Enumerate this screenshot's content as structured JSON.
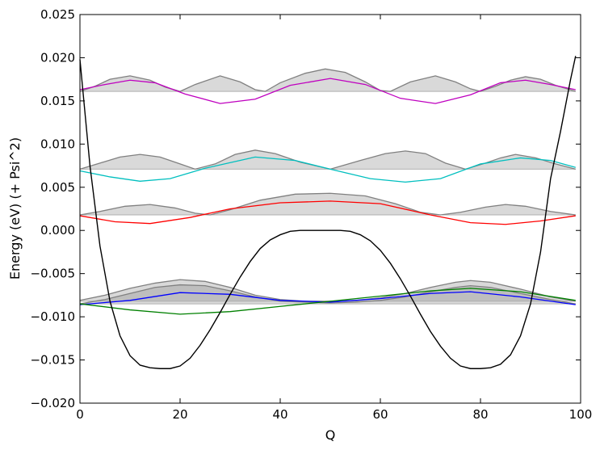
{
  "chart_data": {
    "type": "line",
    "title": "",
    "xlabel": "Q",
    "ylabel": "Energy (eV) (+ Psi^2)",
    "xlim": [
      0,
      100
    ],
    "ylim": [
      -0.02,
      0.025
    ],
    "xticks": [
      "0",
      "20",
      "40",
      "60",
      "80",
      "100"
    ],
    "yticks": [
      "−0.020",
      "−0.015",
      "−0.010",
      "−0.005",
      "0.000",
      "0.005",
      "0.010",
      "0.015",
      "0.020",
      "0.025"
    ],
    "grid": false,
    "legend": "none",
    "potential": {
      "color": "#000000",
      "points": [
        [
          0,
          0.0198
        ],
        [
          2,
          0.0075
        ],
        [
          4,
          -0.0018
        ],
        [
          6,
          -0.0082
        ],
        [
          8,
          -0.0122
        ],
        [
          10,
          -0.0145
        ],
        [
          12,
          -0.0156
        ],
        [
          14,
          -0.0159
        ],
        [
          16,
          -0.016
        ],
        [
          18,
          -0.016
        ],
        [
          20,
          -0.0157
        ],
        [
          22,
          -0.0148
        ],
        [
          24,
          -0.0133
        ],
        [
          26,
          -0.0115
        ],
        [
          28,
          -0.0095
        ],
        [
          30,
          -0.0074
        ],
        [
          32,
          -0.0054
        ],
        [
          34,
          -0.0036
        ],
        [
          36,
          -0.0021
        ],
        [
          38,
          -0.0011
        ],
        [
          40,
          -0.0005
        ],
        [
          42,
          -0.0001
        ],
        [
          44,
          0.0
        ],
        [
          46,
          0.0
        ],
        [
          48,
          0.0
        ],
        [
          50,
          0.0
        ],
        [
          52,
          0.0
        ],
        [
          54,
          -0.0001
        ],
        [
          56,
          -0.0005
        ],
        [
          58,
          -0.0012
        ],
        [
          60,
          -0.0023
        ],
        [
          62,
          -0.0038
        ],
        [
          64,
          -0.0056
        ],
        [
          66,
          -0.0076
        ],
        [
          68,
          -0.0097
        ],
        [
          70,
          -0.0117
        ],
        [
          72,
          -0.0134
        ],
        [
          74,
          -0.0148
        ],
        [
          76,
          -0.0157
        ],
        [
          78,
          -0.016
        ],
        [
          80,
          -0.016
        ],
        [
          82,
          -0.0159
        ],
        [
          84,
          -0.0155
        ],
        [
          86,
          -0.0144
        ],
        [
          88,
          -0.0122
        ],
        [
          90,
          -0.0085
        ],
        [
          92,
          -0.0025
        ],
        [
          94,
          0.006
        ],
        [
          96,
          0.0115
        ],
        [
          98,
          0.0175
        ],
        [
          99,
          0.0202
        ]
      ]
    },
    "levels": [
      {
        "energy": -0.0085,
        "color": "#0000ff",
        "psi": [
          [
            0,
            -0.0086
          ],
          [
            10,
            -0.0081
          ],
          [
            20,
            -0.0072
          ],
          [
            30,
            -0.0074
          ],
          [
            40,
            -0.0081
          ],
          [
            50,
            -0.0083
          ],
          [
            60,
            -0.0079
          ],
          [
            70,
            -0.0073
          ],
          [
            78,
            -0.0071
          ],
          [
            88,
            -0.0077
          ],
          [
            99,
            -0.0086
          ]
        ],
        "density": [
          [
            0,
            -0.0085
          ],
          [
            5,
            -0.008
          ],
          [
            10,
            -0.0073
          ],
          [
            15,
            -0.0066
          ],
          [
            20,
            -0.0063
          ],
          [
            25,
            -0.0064
          ],
          [
            30,
            -0.007
          ],
          [
            35,
            -0.0077
          ],
          [
            40,
            -0.0082
          ],
          [
            45,
            -0.0083
          ],
          [
            50,
            -0.0084
          ],
          [
            55,
            -0.0083
          ],
          [
            60,
            -0.0081
          ],
          [
            65,
            -0.0077
          ],
          [
            70,
            -0.0071
          ],
          [
            75,
            -0.0066
          ],
          [
            78,
            -0.0064
          ],
          [
            82,
            -0.0066
          ],
          [
            88,
            -0.0073
          ],
          [
            94,
            -0.008
          ],
          [
            99,
            -0.0085
          ]
        ]
      },
      {
        "energy": -0.0082,
        "color": "#008000",
        "psi": [
          [
            0,
            -0.0085
          ],
          [
            10,
            -0.0092
          ],
          [
            20,
            -0.0097
          ],
          [
            30,
            -0.0094
          ],
          [
            40,
            -0.0088
          ],
          [
            50,
            -0.0082
          ],
          [
            60,
            -0.0076
          ],
          [
            70,
            -0.007
          ],
          [
            78,
            -0.0067
          ],
          [
            88,
            -0.0071
          ],
          [
            99,
            -0.0081
          ]
        ],
        "density": [
          [
            0,
            -0.0081
          ],
          [
            5,
            -0.0075
          ],
          [
            10,
            -0.0067
          ],
          [
            15,
            -0.0061
          ],
          [
            20,
            -0.0057
          ],
          [
            25,
            -0.0059
          ],
          [
            30,
            -0.0066
          ],
          [
            35,
            -0.0075
          ],
          [
            40,
            -0.008
          ],
          [
            45,
            -0.0082
          ],
          [
            50,
            -0.0082
          ],
          [
            55,
            -0.0081
          ],
          [
            60,
            -0.0078
          ],
          [
            65,
            -0.0073
          ],
          [
            70,
            -0.0066
          ],
          [
            75,
            -0.006
          ],
          [
            78,
            -0.0058
          ],
          [
            82,
            -0.006
          ],
          [
            88,
            -0.0068
          ],
          [
            94,
            -0.0077
          ],
          [
            99,
            -0.0082
          ]
        ]
      },
      {
        "energy": 0.0018,
        "color": "#ff0000",
        "psi": [
          [
            0,
            0.0017
          ],
          [
            7,
            0.001
          ],
          [
            14,
            0.0008
          ],
          [
            22,
            0.0015
          ],
          [
            30,
            0.0025
          ],
          [
            40,
            0.0032
          ],
          [
            50,
            0.0034
          ],
          [
            60,
            0.0031
          ],
          [
            70,
            0.0018
          ],
          [
            78,
            0.0009
          ],
          [
            85,
            0.0007
          ],
          [
            92,
            0.0011
          ],
          [
            99,
            0.0017
          ]
        ],
        "density": [
          [
            0,
            0.0018
          ],
          [
            4,
            0.0022
          ],
          [
            9,
            0.0028
          ],
          [
            14,
            0.003
          ],
          [
            19,
            0.0026
          ],
          [
            23,
            0.002
          ],
          [
            26,
            0.0018
          ],
          [
            30,
            0.0024
          ],
          [
            36,
            0.0035
          ],
          [
            43,
            0.0042
          ],
          [
            50,
            0.0043
          ],
          [
            57,
            0.004
          ],
          [
            63,
            0.0031
          ],
          [
            68,
            0.0021
          ],
          [
            72,
            0.0018
          ],
          [
            76,
            0.0021
          ],
          [
            81,
            0.0027
          ],
          [
            85,
            0.003
          ],
          [
            89,
            0.0028
          ],
          [
            94,
            0.0022
          ],
          [
            99,
            0.0018
          ]
        ]
      },
      {
        "energy": 0.0071,
        "color": "#00bfbf",
        "psi": [
          [
            0,
            0.0069
          ],
          [
            6,
            0.0062
          ],
          [
            12,
            0.0057
          ],
          [
            18,
            0.006
          ],
          [
            25,
            0.0072
          ],
          [
            35,
            0.0085
          ],
          [
            43,
            0.0081
          ],
          [
            50,
            0.0071
          ],
          [
            58,
            0.006
          ],
          [
            65,
            0.0056
          ],
          [
            72,
            0.006
          ],
          [
            80,
            0.0077
          ],
          [
            88,
            0.0084
          ],
          [
            94,
            0.0081
          ],
          [
            99,
            0.0073
          ]
        ],
        "density": [
          [
            0,
            0.0071
          ],
          [
            4,
            0.0078
          ],
          [
            8,
            0.0085
          ],
          [
            12,
            0.0088
          ],
          [
            16,
            0.0085
          ],
          [
            20,
            0.0077
          ],
          [
            23,
            0.0071
          ],
          [
            27,
            0.0077
          ],
          [
            31,
            0.0088
          ],
          [
            35,
            0.0093
          ],
          [
            39,
            0.0089
          ],
          [
            44,
            0.0079
          ],
          [
            50,
            0.0071
          ],
          [
            56,
            0.0081
          ],
          [
            61,
            0.0089
          ],
          [
            65,
            0.0092
          ],
          [
            69,
            0.0089
          ],
          [
            73,
            0.0078
          ],
          [
            77,
            0.0071
          ],
          [
            81,
            0.0078
          ],
          [
            84,
            0.0084
          ],
          [
            87,
            0.0088
          ],
          [
            91,
            0.0084
          ],
          [
            95,
            0.0077
          ],
          [
            99,
            0.0071
          ]
        ]
      },
      {
        "energy": 0.0161,
        "color": "#bf00bf",
        "psi": [
          [
            0,
            0.0163
          ],
          [
            5,
            0.0169
          ],
          [
            10,
            0.0174
          ],
          [
            15,
            0.0171
          ],
          [
            21,
            0.0158
          ],
          [
            28,
            0.0147
          ],
          [
            35,
            0.0152
          ],
          [
            42,
            0.0168
          ],
          [
            50,
            0.0176
          ],
          [
            57,
            0.0169
          ],
          [
            64,
            0.0153
          ],
          [
            71,
            0.0147
          ],
          [
            78,
            0.0157
          ],
          [
            84,
            0.0171
          ],
          [
            89,
            0.0174
          ],
          [
            94,
            0.0169
          ],
          [
            99,
            0.0163
          ]
        ],
        "density": [
          [
            0,
            0.0161
          ],
          [
            3,
            0.0167
          ],
          [
            6,
            0.0175
          ],
          [
            10,
            0.0179
          ],
          [
            14,
            0.0174
          ],
          [
            17,
            0.0166
          ],
          [
            20,
            0.0161
          ],
          [
            23,
            0.0169
          ],
          [
            28,
            0.0179
          ],
          [
            32,
            0.0172
          ],
          [
            35,
            0.0163
          ],
          [
            37,
            0.0161
          ],
          [
            40,
            0.0171
          ],
          [
            45,
            0.0182
          ],
          [
            49,
            0.0187
          ],
          [
            53,
            0.0183
          ],
          [
            57,
            0.0172
          ],
          [
            60,
            0.0162
          ],
          [
            62,
            0.0161
          ],
          [
            66,
            0.0172
          ],
          [
            71,
            0.0179
          ],
          [
            75,
            0.0172
          ],
          [
            78,
            0.0164
          ],
          [
            80,
            0.0161
          ],
          [
            83,
            0.0167
          ],
          [
            86,
            0.0174
          ],
          [
            89,
            0.0178
          ],
          [
            92,
            0.0175
          ],
          [
            95,
            0.0168
          ],
          [
            99,
            0.0161
          ]
        ]
      }
    ]
  }
}
